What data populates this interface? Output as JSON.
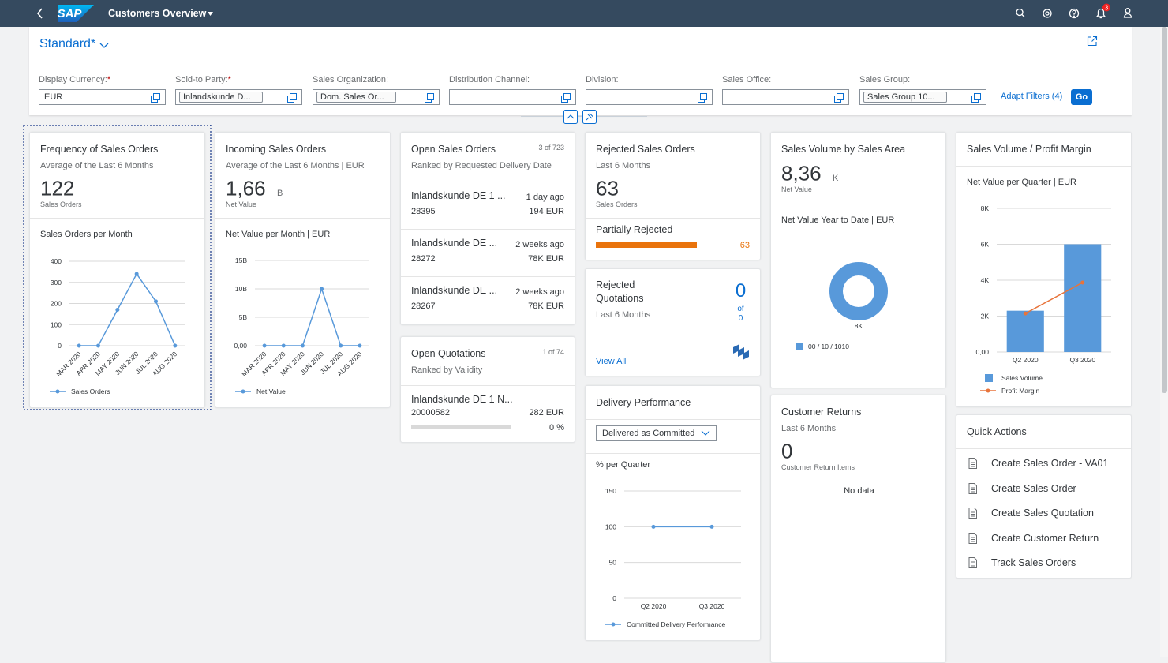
{
  "header": {
    "logo": "SAP",
    "title": "Customers Overview",
    "notification_count": "3"
  },
  "variant": "Standard*",
  "filters": [
    {
      "label": "Display Currency:",
      "required": "*",
      "value": "EUR"
    },
    {
      "label": "Sold-to Party:",
      "required": "*",
      "token": "Inlandskunde D..."
    },
    {
      "label": "Sales Organization:",
      "token": "Dom. Sales Or..."
    },
    {
      "label": "Distribution Channel:"
    },
    {
      "label": "Division:"
    },
    {
      "label": "Sales Office:"
    },
    {
      "label": "Sales Group:",
      "token": "Sales Group 10..."
    }
  ],
  "adapt_filters": "Adapt Filters (4)",
  "go": "Go",
  "cards": [
    {
      "title": "Frequency of Sales Orders",
      "subtitle": "Average of the Last 6 Months",
      "kpi": "122",
      "kpi_unit": "Sales Orders",
      "chart": {
        "type": "line",
        "title": "Sales Orders per Month",
        "categories": [
          "MAR 2020",
          "APR 2020",
          "MAY 2020",
          "JUN 2020",
          "JUL 2020",
          "AUG 2020"
        ],
        "series": [
          {
            "name": "Sales Orders",
            "color": "#5899da",
            "values": [
              0,
              0,
              170,
              340,
              210,
              0
            ]
          }
        ],
        "ylim": [
          0,
          400
        ],
        "yticks": [
          0,
          100,
          200,
          300,
          400
        ],
        "grid": true
      }
    },
    {
      "title": "Incoming Sales Orders",
      "subtitle": "Average of the Last 6 Months | EUR",
      "kpi": "1,66",
      "kpi_scale": "B",
      "kpi_unit": "Net Value",
      "chart": {
        "type": "line",
        "title": "Net Value per Month | EUR",
        "categories": [
          "MAR 2020",
          "APR 2020",
          "MAY 2020",
          "JUN 2020",
          "JUL 2020",
          "AUG 2020"
        ],
        "series": [
          {
            "name": "Net Value",
            "color": "#5899da",
            "values": [
              0,
              0,
              0,
              10000000000,
              0,
              0
            ]
          }
        ],
        "ylim": [
          0,
          15000000000
        ],
        "yticks": [
          {
            "value": 0,
            "label": "0,00"
          },
          {
            "value": 5000000000,
            "label": "5B"
          },
          {
            "value": 10000000000,
            "label": "10B"
          },
          {
            "value": 15000000000,
            "label": "15B"
          }
        ],
        "grid": true
      }
    },
    {
      "title": "Open Sales Orders",
      "count": "3 of 723",
      "subtitle": "Ranked by Requested Delivery Date",
      "items": [
        {
          "name": "Inlandskunde DE 1 ...",
          "id": "28395",
          "date": "1 day ago",
          "amount": "194 EUR"
        },
        {
          "name": "Inlandskunde DE ...",
          "id": "28272",
          "date": "2 weeks ago",
          "amount": "78K EUR"
        },
        {
          "name": "Inlandskunde DE ...",
          "id": "28267",
          "date": "2 weeks ago",
          "amount": "78K EUR"
        }
      ]
    },
    {
      "title": "Open Quotations",
      "count": "1 of 74",
      "subtitle": "Ranked by Validity",
      "items": [
        {
          "name": "Inlandskunde DE 1 N...",
          "id": "20000582",
          "amount": "282 EUR",
          "progress": 0,
          "progress_label": "0 %",
          "xlim": [
            0,
            100
          ]
        }
      ]
    },
    {
      "title": "Rejected Sales Orders",
      "subtitle": "Last 6 Months",
      "kpi": "63",
      "kpi_unit": "Sales Orders",
      "bar": {
        "label": "Partially Rejected",
        "value": 63,
        "xlim": [
          0,
          63
        ],
        "color": "#e9730c"
      }
    },
    {
      "title": "Rejected Quotations",
      "subtitle": "Last 6 Months",
      "kpi": "0",
      "of": "of",
      "total": "0",
      "link": "View All"
    },
    {
      "title": "Delivery Performance",
      "dropdown": "Delivered as Committed",
      "chart": {
        "type": "line",
        "title": "% per Quarter",
        "categories": [
          "Q2 2020",
          "Q3 2020"
        ],
        "series": [
          {
            "name": "Committed Delivery Performance",
            "color": "#5899da",
            "values": [
              100,
              100
            ]
          }
        ],
        "ylim": [
          0,
          150
        ],
        "yticks": [
          0,
          50,
          100,
          150
        ],
        "grid": true
      }
    },
    {
      "title": "Sales Volume by Sales Area",
      "kpi": "8,36",
      "kpi_scale": "K",
      "kpi_unit": "Net Value",
      "chart": {
        "type": "donut",
        "title": "Net Value Year to Date | EUR",
        "categories": [
          "00 / 10 / 1010"
        ],
        "values": [
          8360
        ],
        "value_labels": [
          "8K"
        ],
        "colors": [
          "#5899da"
        ]
      }
    },
    {
      "title": "Customer Returns",
      "subtitle": "Last 6 Months",
      "kpi": "0",
      "kpi_unit": "Customer Return Items",
      "message": "No data"
    },
    {
      "title": "Sales Volume / Profit Margin",
      "chart": {
        "type": "combo",
        "title": "Net Value per Quarter | EUR",
        "categories": [
          "Q2 2020",
          "Q3 2020"
        ],
        "series": [
          {
            "name": "Sales Volume",
            "type": "bar",
            "color": "#5899da",
            "values": [
              2300,
              6000
            ]
          },
          {
            "name": "Profit Margin",
            "type": "line",
            "color": "#e8743b",
            "values": [
              2150,
              3870
            ]
          }
        ],
        "ylim": [
          0,
          8000
        ],
        "yticks": [
          {
            "value": 0,
            "label": "0,00"
          },
          {
            "value": 2000,
            "label": "2K"
          },
          {
            "value": 4000,
            "label": "4K"
          },
          {
            "value": 6000,
            "label": "6K"
          },
          {
            "value": 8000,
            "label": "8K"
          }
        ],
        "grid": true
      }
    },
    {
      "title": "Quick Actions",
      "actions": [
        "Create Sales Order - VA01",
        "Create Sales Order",
        "Create Sales Quotation",
        "Create Customer Return",
        "Track Sales Orders"
      ]
    }
  ]
}
